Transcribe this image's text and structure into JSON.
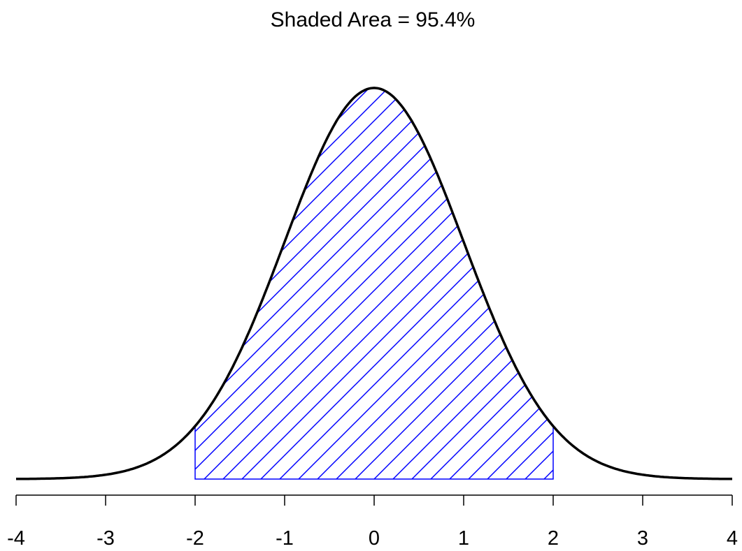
{
  "chart_data": {
    "type": "area",
    "title": "Shaded Area = 95.4%",
    "xlabel": "",
    "ylabel": "",
    "xlim": [
      -4,
      4
    ],
    "ylim": [
      0,
      0.3989
    ],
    "x_ticks": [
      "-4",
      "-3",
      "-2",
      "-1",
      "0",
      "1",
      "2",
      "3",
      "4"
    ],
    "curve": "standard normal density",
    "shaded_region": {
      "from": -2,
      "to": 2,
      "fill": "diagonal hatch"
    },
    "grid": false,
    "colors": {
      "curve": "#000000",
      "shade": "#0000ff"
    }
  }
}
